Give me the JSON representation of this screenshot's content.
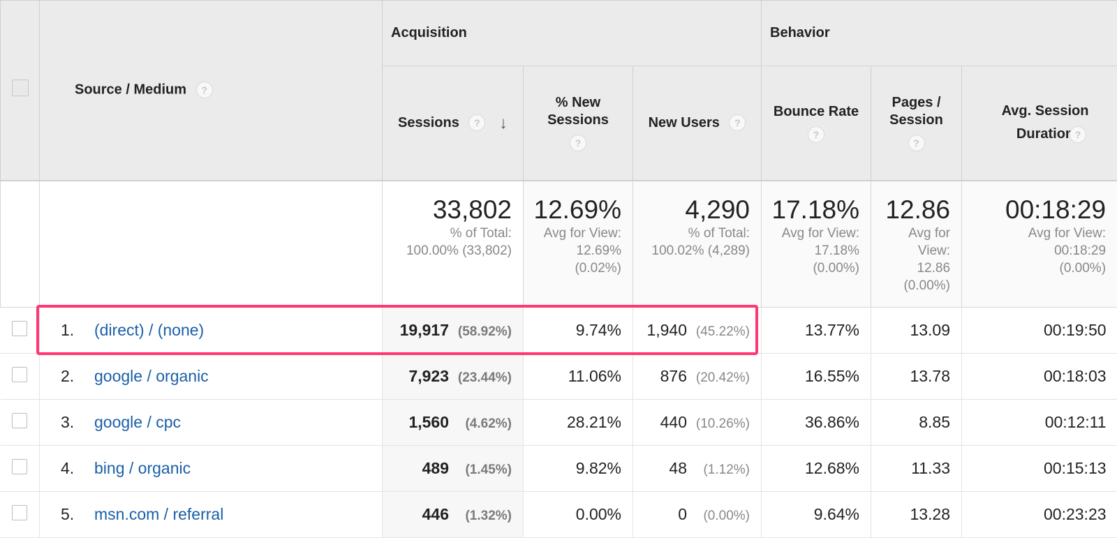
{
  "groups": {
    "acquisition": "Acquisition",
    "behavior": "Behavior"
  },
  "columns": {
    "source": "Source / Medium",
    "sessions": "Sessions",
    "new_sessions": "% New Sessions",
    "new_users": "New Users",
    "bounce_rate": "Bounce Rate",
    "pages_session": "Pages / Session",
    "avg_duration": "Avg. Session Duration"
  },
  "help_glyph": "?",
  "sort_glyph": "↓",
  "totals": {
    "sessions": {
      "value": "33,802",
      "sub1": "% of Total:",
      "sub2": "100.00% (33,802)"
    },
    "new_sessions": {
      "value": "12.69%",
      "sub1": "Avg for View:",
      "sub2": "12.69%",
      "sub3": "(0.02%)"
    },
    "new_users": {
      "value": "4,290",
      "sub1": "% of Total:",
      "sub2": "100.02% (4,289)"
    },
    "bounce_rate": {
      "value": "17.18%",
      "sub1": "Avg for View:",
      "sub2": "17.18%",
      "sub3": "(0.00%)"
    },
    "pages_session": {
      "value": "12.86",
      "sub1": "Avg for",
      "sub2": "View:",
      "sub3": "12.86",
      "sub4": "(0.00%)"
    },
    "avg_duration": {
      "value": "00:18:29",
      "sub1": "Avg for View:",
      "sub2": "00:18:29",
      "sub3": "(0.00%)"
    }
  },
  "rows": [
    {
      "rank": "1.",
      "source": "(direct) / (none)",
      "sessions": "19,917",
      "sessions_pct": "(58.92%)",
      "new_sessions": "9.74%",
      "new_users": "1,940",
      "new_users_pct": "(45.22%)",
      "bounce_rate": "13.77%",
      "pages_session": "13.09",
      "avg_duration": "00:19:50"
    },
    {
      "rank": "2.",
      "source": "google / organic",
      "sessions": "7,923",
      "sessions_pct": "(23.44%)",
      "new_sessions": "11.06%",
      "new_users": "876",
      "new_users_pct": "(20.42%)",
      "bounce_rate": "16.55%",
      "pages_session": "13.78",
      "avg_duration": "00:18:03"
    },
    {
      "rank": "3.",
      "source": "google / cpc",
      "sessions": "1,560",
      "sessions_pct": "(4.62%)",
      "new_sessions": "28.21%",
      "new_users": "440",
      "new_users_pct": "(10.26%)",
      "bounce_rate": "36.86%",
      "pages_session": "8.85",
      "avg_duration": "00:12:11"
    },
    {
      "rank": "4.",
      "source": "bing / organic",
      "sessions": "489",
      "sessions_pct": "(1.45%)",
      "new_sessions": "9.82%",
      "new_users": "48",
      "new_users_pct": "(1.12%)",
      "bounce_rate": "12.68%",
      "pages_session": "11.33",
      "avg_duration": "00:15:13"
    },
    {
      "rank": "5.",
      "source": "msn.com / referral",
      "sessions": "446",
      "sessions_pct": "(1.32%)",
      "new_sessions": "0.00%",
      "new_users": "0",
      "new_users_pct": "(0.00%)",
      "bounce_rate": "9.64%",
      "pages_session": "13.28",
      "avg_duration": "00:23:23"
    }
  ],
  "colors": {
    "link": "#1a5fa8",
    "highlight": "#ff3773",
    "header_bg": "#ebebeb"
  }
}
